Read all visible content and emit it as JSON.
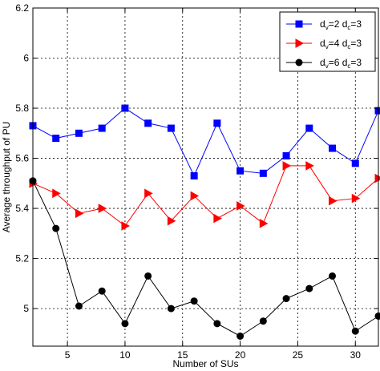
{
  "chart_data": {
    "type": "line",
    "xlabel": "Number of SUs",
    "ylabel": "Average throughput of PU",
    "xlim": [
      2,
      32
    ],
    "ylim": [
      4.85,
      6.2
    ],
    "x_ticks": [
      "5",
      "10",
      "15",
      "20",
      "25",
      "30"
    ],
    "y_ticks": [
      "5",
      "5.2",
      "5.4",
      "5.6",
      "5.8",
      "6",
      "6.2"
    ],
    "grid": true,
    "legend_position": "top-right",
    "x": [
      2,
      4,
      6,
      8,
      10,
      12,
      14,
      16,
      18,
      20,
      22,
      24,
      26,
      28,
      30,
      32
    ],
    "series": [
      {
        "name": "dv=2 dc=3",
        "legend": {
          "a": "d",
          "a_sub": "v",
          "b": "=2 d",
          "b_sub": "c",
          "c": "=3"
        },
        "color": "#0000ff",
        "marker": "square",
        "values": [
          5.73,
          5.68,
          5.7,
          5.72,
          5.8,
          5.74,
          5.72,
          5.53,
          5.74,
          5.55,
          5.54,
          5.61,
          5.72,
          5.64,
          5.58,
          5.79
        ]
      },
      {
        "name": "dv=4 dc=3",
        "legend": {
          "a": "d",
          "a_sub": "v",
          "b": "=4 d",
          "b_sub": "c",
          "c": "=3"
        },
        "color": "#ff0000",
        "marker": "triangle-right",
        "values": [
          5.5,
          5.46,
          5.38,
          5.4,
          5.33,
          5.46,
          5.35,
          5.45,
          5.36,
          5.41,
          5.34,
          5.57,
          5.57,
          5.43,
          5.44,
          5.52
        ]
      },
      {
        "name": "dv=6 dc=3",
        "legend": {
          "a": "d",
          "a_sub": "v",
          "b": "=6 d",
          "b_sub": "c",
          "c": "=3"
        },
        "color": "#000000",
        "marker": "circle",
        "values": [
          5.51,
          5.32,
          5.01,
          5.07,
          4.94,
          5.13,
          5.0,
          5.03,
          4.94,
          4.89,
          4.95,
          5.04,
          5.08,
          5.13,
          4.91,
          4.97
        ]
      }
    ]
  }
}
